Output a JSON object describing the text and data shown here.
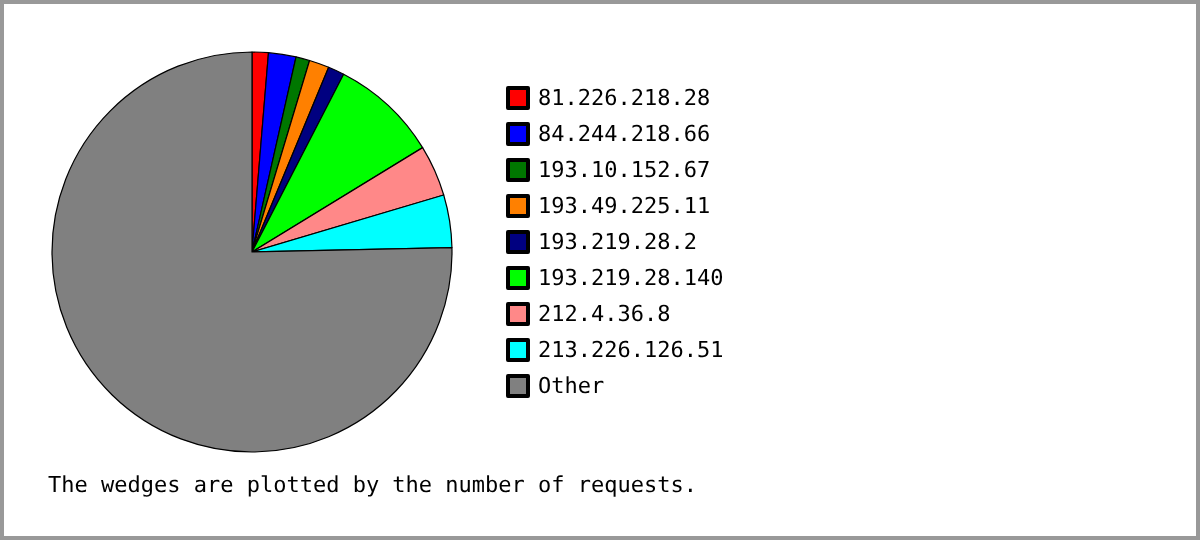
{
  "chart_data": {
    "type": "pie",
    "categories": [
      "81.226.218.28",
      "84.244.218.66",
      "193.10.152.67",
      "193.49.225.11",
      "193.219.28.2",
      "193.219.28.140",
      "212.4.36.8",
      "213.226.126.51",
      "Other"
    ],
    "values": [
      1.3,
      2.2,
      1.1,
      1.6,
      1.3,
      8.6,
      4.1,
      4.2,
      74.6
    ],
    "colors": [
      "#ff0000",
      "#0000ff",
      "#007700",
      "#ff8000",
      "#000080",
      "#00ff00",
      "#ff8888",
      "#00ffff",
      "#808080"
    ],
    "legend": "right",
    "annotations": [
      "The wedges are plotted by the number of requests."
    ]
  }
}
